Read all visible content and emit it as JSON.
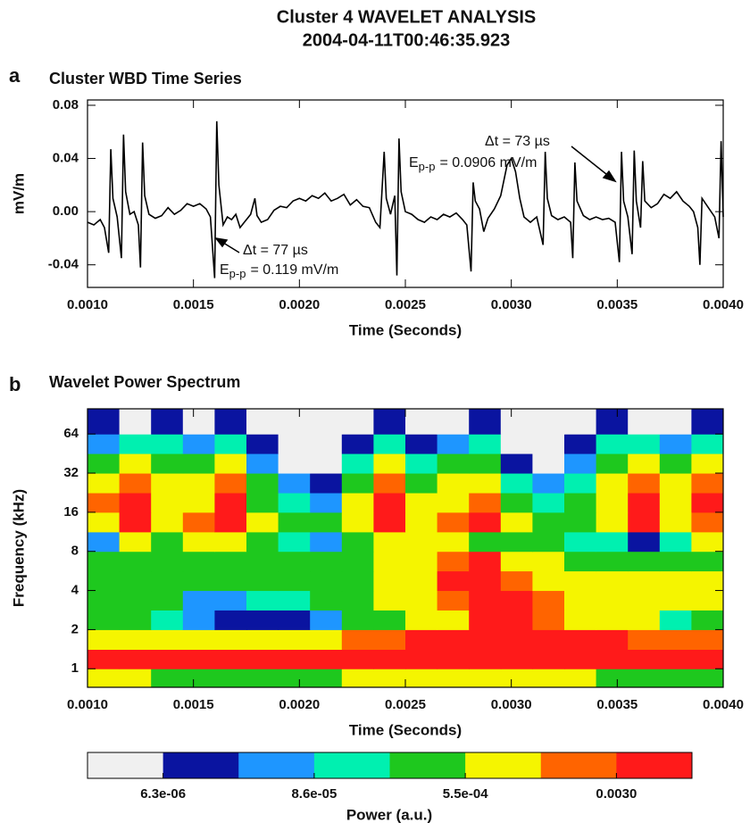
{
  "title": [
    "Cluster 4 WAVELET ANALYSIS",
    "2004-04-11T00:46:35.923"
  ],
  "chart_data": [
    {
      "type": "line",
      "panel": "a",
      "title": "Cluster WBD Time Series",
      "xlabel": "Time (Seconds)",
      "ylabel": "mV/m",
      "color": "#000000",
      "xlim": [
        0.001,
        0.004
      ],
      "ylim": [
        -0.057,
        0.084
      ],
      "xticks": [
        {
          "value": 0.001,
          "label": "0.0010"
        },
        {
          "value": 0.0015,
          "label": "0.0015"
        },
        {
          "value": 0.002,
          "label": "0.0020"
        },
        {
          "value": 0.0025,
          "label": "0.0025"
        },
        {
          "value": 0.003,
          "label": "0.0030"
        },
        {
          "value": 0.0035,
          "label": "0.0035"
        },
        {
          "value": 0.004,
          "label": "0.0040"
        }
      ],
      "yticks": [
        -0.04,
        {
          "value": 0,
          "label": "0.00"
        },
        0.04,
        0.08
      ],
      "x": [
        0.001,
        0.00103,
        0.00106,
        0.00108,
        0.0011,
        0.00111,
        0.00112,
        0.00114,
        0.00116,
        0.00117,
        0.00118,
        0.0012,
        0.00122,
        0.00124,
        0.00125,
        0.00126,
        0.00127,
        0.00129,
        0.00132,
        0.00135,
        0.00138,
        0.00141,
        0.00144,
        0.00147,
        0.0015,
        0.00153,
        0.00156,
        0.00158,
        0.0016,
        0.00161,
        0.00162,
        0.00164,
        0.00166,
        0.00168,
        0.0017,
        0.00172,
        0.00174,
        0.00177,
        0.00179,
        0.0018,
        0.00182,
        0.00185,
        0.00188,
        0.00191,
        0.00194,
        0.00197,
        0.002,
        0.00203,
        0.00206,
        0.00209,
        0.00212,
        0.00215,
        0.00218,
        0.00221,
        0.00224,
        0.00227,
        0.0023,
        0.00233,
        0.00236,
        0.00238,
        0.0024,
        0.00241,
        0.00243,
        0.00245,
        0.00246,
        0.00247,
        0.00248,
        0.0025,
        0.00253,
        0.00256,
        0.00259,
        0.00262,
        0.00265,
        0.00268,
        0.00271,
        0.00274,
        0.00277,
        0.00279,
        0.00281,
        0.00282,
        0.00283,
        0.00285,
        0.00287,
        0.00289,
        0.00292,
        0.00295,
        0.00298,
        0.003,
        0.00302,
        0.00304,
        0.00306,
        0.00309,
        0.00312,
        0.00315,
        0.00316,
        0.00317,
        0.00319,
        0.00322,
        0.00325,
        0.00328,
        0.00329,
        0.0033,
        0.00331,
        0.00334,
        0.00337,
        0.0034,
        0.00343,
        0.00346,
        0.00349,
        0.00351,
        0.00352,
        0.00353,
        0.00355,
        0.00357,
        0.00358,
        0.00359,
        0.00361,
        0.00362,
        0.00363,
        0.00366,
        0.00369,
        0.00372,
        0.00375,
        0.00378,
        0.00381,
        0.00384,
        0.00386,
        0.00388,
        0.00389,
        0.0039,
        0.00393,
        0.00396,
        0.00398,
        0.00399,
        0.004
      ],
      "values": [
        -0.008,
        -0.01,
        -0.006,
        -0.012,
        -0.031,
        0.047,
        0.01,
        -0.004,
        -0.035,
        0.058,
        0.015,
        -0.002,
        0.0,
        -0.01,
        -0.042,
        0.052,
        0.012,
        -0.002,
        -0.005,
        -0.003,
        0.003,
        -0.002,
        0.001,
        0.006,
        0.004,
        0.006,
        0.002,
        -0.004,
        -0.05,
        0.068,
        0.02,
        -0.01,
        -0.004,
        -0.006,
        -0.002,
        -0.012,
        -0.008,
        -0.002,
        0.01,
        -0.003,
        -0.008,
        -0.006,
        0.001,
        0.004,
        0.003,
        0.008,
        0.01,
        0.008,
        0.012,
        0.01,
        0.014,
        0.008,
        0.01,
        0.013,
        0.005,
        0.009,
        0.004,
        0.003,
        -0.008,
        -0.012,
        0.045,
        0.01,
        -0.002,
        0.012,
        -0.048,
        0.055,
        0.015,
        0.0,
        -0.002,
        -0.006,
        -0.008,
        -0.004,
        -0.006,
        -0.002,
        -0.004,
        -0.001,
        -0.006,
        -0.01,
        -0.045,
        0.022,
        0.008,
        0.002,
        -0.015,
        -0.005,
        0.002,
        0.012,
        0.035,
        0.04,
        0.03,
        0.01,
        -0.004,
        -0.008,
        -0.004,
        -0.025,
        0.045,
        0.01,
        -0.003,
        -0.006,
        -0.004,
        -0.008,
        -0.035,
        0.037,
        0.008,
        -0.003,
        -0.006,
        -0.004,
        -0.006,
        -0.005,
        -0.008,
        -0.038,
        0.045,
        0.008,
        -0.004,
        -0.032,
        0.046,
        0.008,
        -0.012,
        0.038,
        0.008,
        0.003,
        0.006,
        0.013,
        0.01,
        0.015,
        0.008,
        0.004,
        0.0,
        -0.012,
        -0.04,
        0.01,
        0.003,
        -0.004,
        -0.02,
        0.053,
        -0.004
      ],
      "annotations": [
        {
          "delta": "Δt = 77 µs",
          "symbol": "E",
          "subscript": "p-p",
          "text": "= 0.119 mV/m"
        },
        {
          "delta": "Δt = 73 µs",
          "symbol": "E",
          "subscript": "p-p",
          "text": "= 0.0906 mV/m"
        }
      ]
    },
    {
      "type": "heatmap",
      "panel": "b",
      "title": "Wavelet Power Spectrum",
      "xlabel": "Time (Seconds)",
      "ylabel": "Frequency (kHz)",
      "colorbar_label": "Power (a.u.)",
      "xlim": [
        0.001,
        0.004
      ],
      "ylim": [
        0.72,
        100
      ],
      "log_y": true,
      "xticks": [
        {
          "value": 0.001,
          "label": "0.0010"
        },
        {
          "value": 0.0015,
          "label": "0.0015"
        },
        {
          "value": 0.002,
          "label": "0.0020"
        },
        {
          "value": 0.0025,
          "label": "0.0025"
        },
        {
          "value": 0.003,
          "label": "0.0030"
        },
        {
          "value": 0.0035,
          "label": "0.0035"
        },
        {
          "value": 0.004,
          "label": "0.0040"
        }
      ],
      "yticks": [
        1,
        2,
        4,
        8,
        16,
        32,
        64
      ],
      "x_edges": [
        0.001,
        0.00115,
        0.0013,
        0.00145,
        0.0016,
        0.00175,
        0.0019,
        0.00205,
        0.0022,
        0.00235,
        0.0025,
        0.00265,
        0.0028,
        0.00295,
        0.0031,
        0.00325,
        0.0034,
        0.00355,
        0.0037,
        0.00385,
        0.004
      ],
      "y_edges": [
        0.72,
        1,
        1.41,
        2,
        2.83,
        4,
        5.66,
        8,
        11.3,
        16,
        22.6,
        32,
        45.3,
        64,
        100
      ],
      "levels": [
        1.7e-06,
        6.3e-06,
        2.3e-05,
        8.6e-05,
        0.00022,
        0.00055,
        0.0013,
        0.003,
        0.007
      ],
      "colors": [
        "#f0f0f0",
        "#0a14a0",
        "#1e96ff",
        "#00f0b0",
        "#1ec81e",
        "#f5f500",
        "#ff6400",
        "#ff1a1a"
      ],
      "colorbar_ticks": [
        {
          "value": 6.3e-06,
          "label": "6.3e-06"
        },
        {
          "value": 8.6e-05,
          "label": "8.6e-05"
        },
        {
          "value": 0.00055,
          "label": "5.5e-04"
        },
        {
          "value": 0.003,
          "label": "0.0030"
        }
      ],
      "values": [
        [
          0.00085,
          0.00085,
          0.00035,
          0.00035,
          0.00035,
          0.00035,
          0.00035,
          0.00035,
          0.00085,
          0.00085,
          0.00085,
          0.00085,
          0.00085,
          0.00085,
          0.00085,
          0.00085,
          0.00035,
          0.00035,
          0.00035,
          0.00035
        ],
        [
          0.0045,
          0.0045,
          0.0045,
          0.0045,
          0.0045,
          0.0045,
          0.0045,
          0.0045,
          0.0045,
          0.0045,
          0.0045,
          0.0045,
          0.0045,
          0.0045,
          0.0045,
          0.0045,
          0.0045,
          0.0045,
          0.0045,
          0.0045
        ],
        [
          0.00085,
          0.00085,
          0.00085,
          0.00085,
          0.00085,
          0.00085,
          0.00085,
          0.00085,
          0.002,
          0.002,
          0.0045,
          0.0045,
          0.0045,
          0.0045,
          0.0045,
          0.0045,
          0.0045,
          0.002,
          0.002,
          0.002
        ],
        [
          0.00035,
          0.00035,
          0.00014,
          4.5e-05,
          1.2e-05,
          1.2e-05,
          1.2e-05,
          4.5e-05,
          0.00035,
          0.00035,
          0.00085,
          0.00085,
          0.0045,
          0.0045,
          0.002,
          0.00085,
          0.00085,
          0.00085,
          0.00014,
          0.00035
        ],
        [
          0.00035,
          0.00035,
          0.00035,
          4.5e-05,
          4.5e-05,
          0.00014,
          0.00014,
          0.00035,
          0.00035,
          0.00085,
          0.00085,
          0.002,
          0.0045,
          0.0045,
          0.002,
          0.00085,
          0.00085,
          0.00085,
          0.00085,
          0.00085
        ],
        [
          0.00035,
          0.00035,
          0.00035,
          0.00035,
          0.00035,
          0.00035,
          0.00035,
          0.00035,
          0.00035,
          0.00085,
          0.00085,
          0.0045,
          0.0045,
          0.002,
          0.00085,
          0.00085,
          0.00085,
          0.00085,
          0.00085,
          0.00085
        ],
        [
          0.00035,
          0.00035,
          0.00035,
          0.00035,
          0.00035,
          0.00035,
          0.00035,
          0.00035,
          0.00035,
          0.00085,
          0.00085,
          0.002,
          0.0045,
          0.00085,
          0.00085,
          0.00035,
          0.00035,
          0.00035,
          0.00035,
          0.00035
        ],
        [
          4.5e-05,
          0.00085,
          0.00035,
          0.00085,
          0.00085,
          0.00035,
          0.00014,
          4.5e-05,
          0.00035,
          0.00085,
          0.00085,
          0.00085,
          0.00035,
          0.00035,
          0.00035,
          0.00014,
          0.00014,
          1.2e-05,
          0.00014,
          0.00085
        ],
        [
          0.00085,
          0.0045,
          0.00085,
          0.002,
          0.0045,
          0.00085,
          0.00035,
          0.00035,
          0.00085,
          0.0045,
          0.00085,
          0.002,
          0.0045,
          0.00085,
          0.00035,
          0.00035,
          0.00085,
          0.0045,
          0.00085,
          0.002
        ],
        [
          0.002,
          0.0045,
          0.00085,
          0.00085,
          0.0045,
          0.00035,
          0.00014,
          4.5e-05,
          0.00085,
          0.0045,
          0.00085,
          0.00085,
          0.002,
          0.00035,
          0.00014,
          0.00035,
          0.00085,
          0.0045,
          0.00085,
          0.0045
        ],
        [
          0.00085,
          0.002,
          0.00085,
          0.00085,
          0.002,
          0.00035,
          4.5e-05,
          1.2e-05,
          0.00035,
          0.002,
          0.00035,
          0.00085,
          0.00085,
          0.00014,
          4.5e-05,
          0.00014,
          0.00085,
          0.002,
          0.00085,
          0.002
        ],
        [
          0.00035,
          0.00085,
          0.00035,
          0.00035,
          0.00085,
          4.5e-05,
          3e-06,
          3e-06,
          0.00014,
          0.00085,
          0.00014,
          0.00035,
          0.00035,
          1.2e-05,
          3e-06,
          4.5e-05,
          0.00035,
          0.00085,
          0.00035,
          0.00085
        ],
        [
          4.5e-05,
          0.00014,
          0.00014,
          4.5e-05,
          0.00014,
          1.2e-05,
          3e-06,
          3e-06,
          1.2e-05,
          0.00014,
          1.2e-05,
          4.5e-05,
          0.00014,
          3e-06,
          3e-06,
          1.2e-05,
          0.00014,
          0.00014,
          4.5e-05,
          0.00014
        ],
        [
          1.2e-05,
          3e-06,
          1.2e-05,
          3e-06,
          1.2e-05,
          3e-06,
          3e-06,
          3e-06,
          3e-06,
          1.2e-05,
          3e-06,
          3e-06,
          1.2e-05,
          3e-06,
          3e-06,
          3e-06,
          1.2e-05,
          3e-06,
          3e-06,
          1.2e-05
        ]
      ]
    }
  ]
}
